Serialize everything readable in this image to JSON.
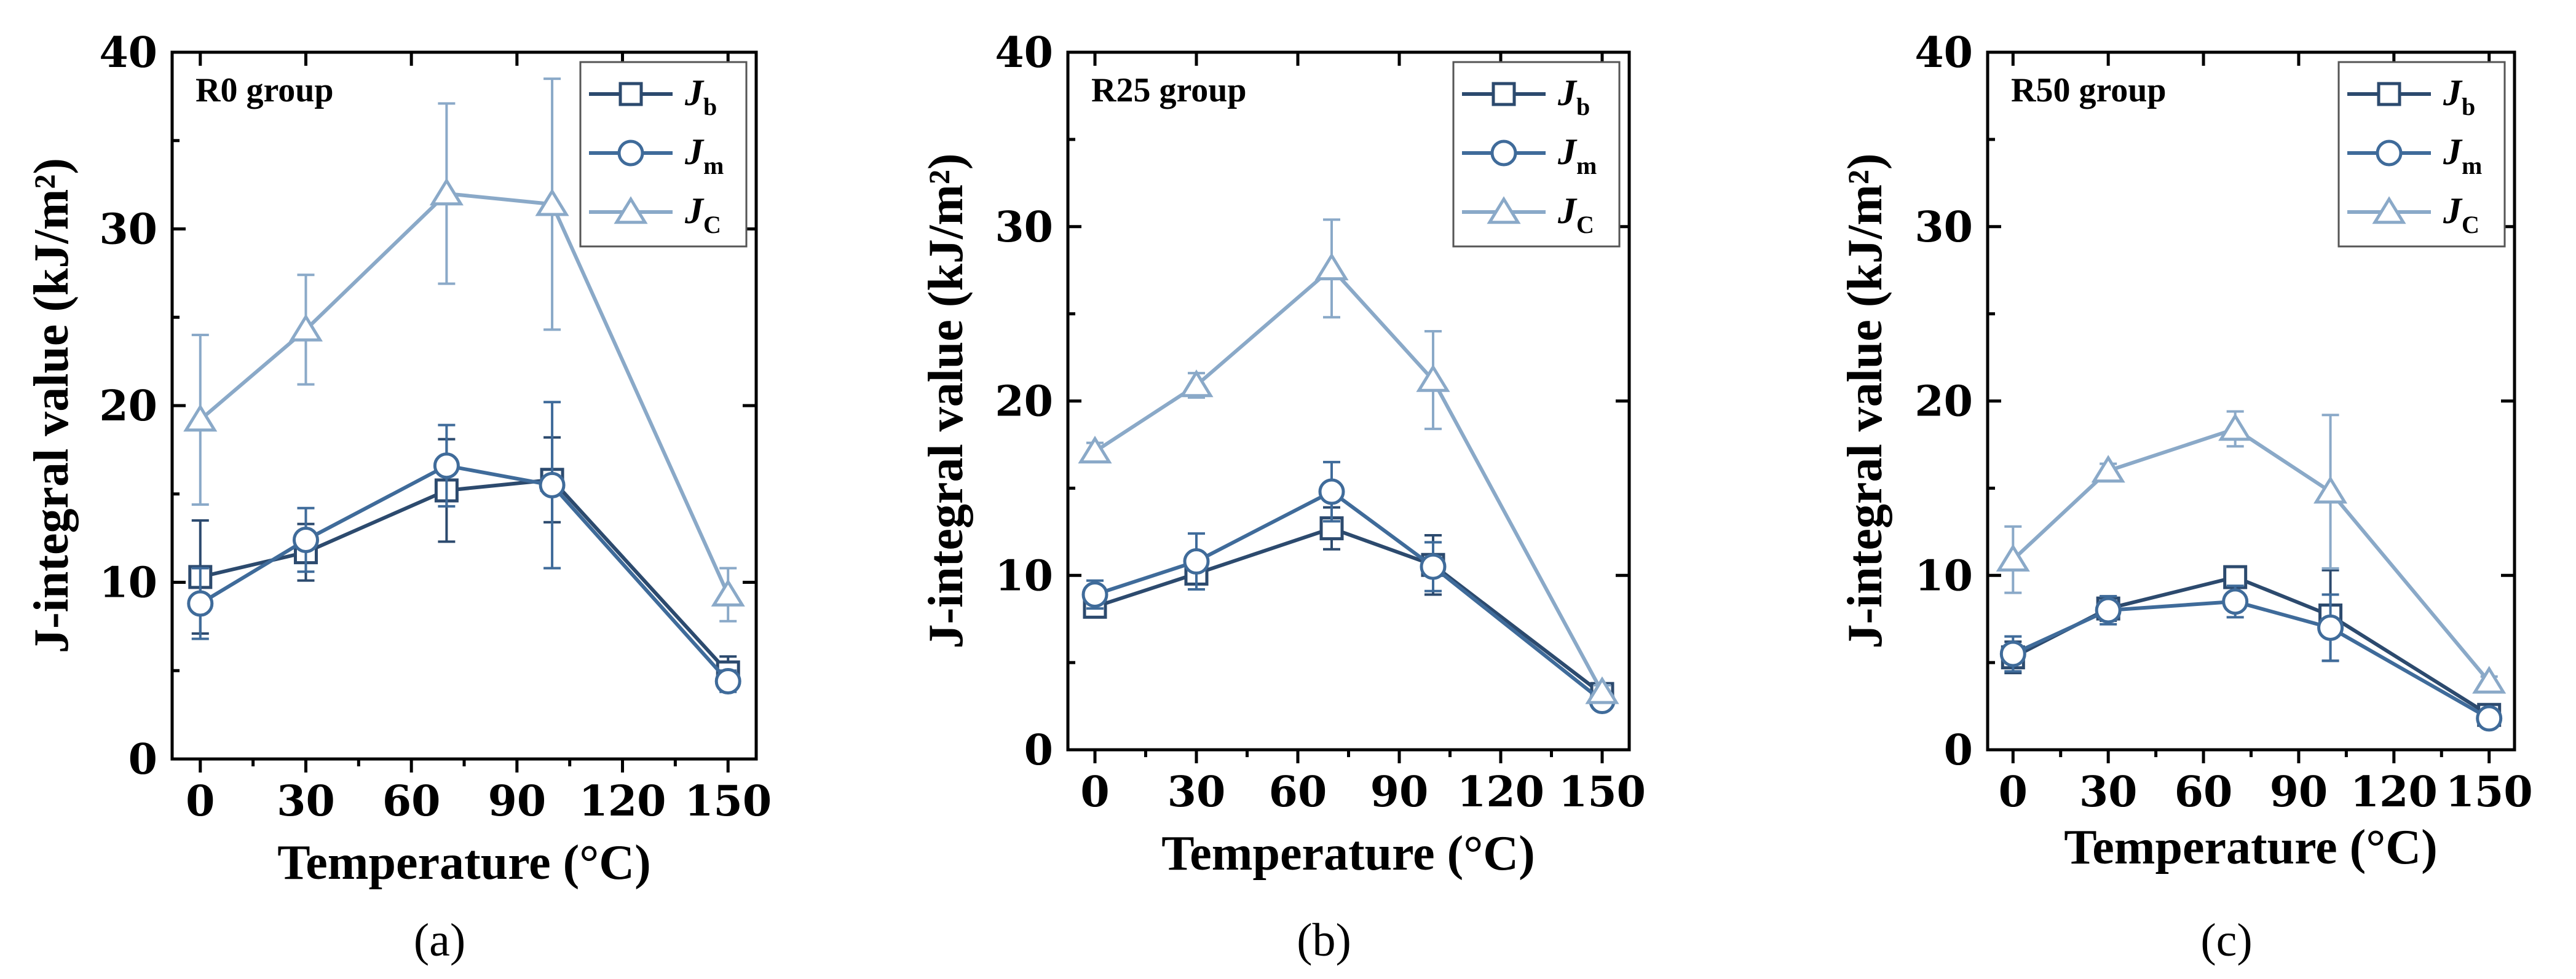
{
  "colors": {
    "Jb": "#2c4a6e",
    "Jm": "#3f6b9a",
    "Jc": "#8aa9c8",
    "axis": "#000000",
    "background": "#ffffff"
  },
  "chart_data": [
    {
      "type": "line",
      "panel_caption": "(a)",
      "group_label": "R0 group",
      "xlabel": "Temperature (°C)",
      "ylabel": "J-integral value (kJ/m²)",
      "x": [
        0,
        30,
        70,
        100,
        150
      ],
      "xticks": [
        0,
        30,
        60,
        90,
        120,
        150
      ],
      "xlim": [
        -8,
        158
      ],
      "ylim": [
        0,
        40
      ],
      "yticks": [
        0,
        10,
        20,
        30,
        40
      ],
      "legend_position": "top-right",
      "series": [
        {
          "key": "Jb",
          "name": "J",
          "sub": "b",
          "marker": "square",
          "values": [
            10.3,
            11.7,
            15.2,
            15.8,
            4.9
          ],
          "errors": [
            3.2,
            1.6,
            2.9,
            2.4,
            0.9
          ]
        },
        {
          "key": "Jm",
          "name": "J",
          "sub": "m",
          "marker": "circle",
          "values": [
            8.8,
            12.4,
            16.6,
            15.5,
            4.4
          ],
          "errors": [
            2.0,
            1.8,
            2.3,
            4.7,
            0.6
          ]
        },
        {
          "key": "Jc",
          "name": "J",
          "sub": "C",
          "marker": "triangle",
          "values": [
            19.2,
            24.3,
            32.0,
            31.4,
            9.3
          ],
          "errors": [
            4.8,
            3.1,
            5.1,
            7.1,
            1.5
          ]
        }
      ]
    },
    {
      "type": "line",
      "panel_caption": "(b)",
      "group_label": "R25 group",
      "xlabel": "Temperature (°C)",
      "ylabel": "J-integral value (kJ/m²)",
      "x": [
        0,
        30,
        70,
        100,
        150
      ],
      "xticks": [
        0,
        30,
        60,
        90,
        120,
        150
      ],
      "xlim": [
        -8,
        158
      ],
      "ylim": [
        0,
        40
      ],
      "yticks": [
        0,
        10,
        20,
        30,
        40
      ],
      "legend_position": "top-right",
      "series": [
        {
          "key": "Jb",
          "name": "J",
          "sub": "b",
          "marker": "square",
          "values": [
            8.2,
            10.1,
            12.7,
            10.6,
            3.2
          ],
          "errors": [
            0.6,
            0.9,
            1.2,
            1.7,
            0.4
          ]
        },
        {
          "key": "Jm",
          "name": "J",
          "sub": "m",
          "marker": "circle",
          "values": [
            8.9,
            10.8,
            14.8,
            10.5,
            2.8
          ],
          "errors": [
            0.8,
            1.6,
            1.7,
            1.4,
            0.3
          ]
        },
        {
          "key": "Jc",
          "name": "J",
          "sub": "C",
          "marker": "triangle",
          "values": [
            17.1,
            20.9,
            27.6,
            21.2,
            3.3
          ],
          "errors": [
            0.5,
            0.7,
            2.8,
            2.8,
            0.4
          ]
        }
      ]
    },
    {
      "type": "line",
      "panel_caption": "(c)",
      "group_label": "R50 group",
      "xlabel": "Temperature (°C)",
      "ylabel": "J-integral value (kJ/m²)",
      "x": [
        0,
        30,
        70,
        100,
        150
      ],
      "xticks": [
        0,
        30,
        60,
        90,
        120,
        150
      ],
      "xlim": [
        -8,
        158
      ],
      "ylim": [
        0,
        40
      ],
      "yticks": [
        0,
        10,
        20,
        30,
        40
      ],
      "legend_position": "top-right",
      "series": [
        {
          "key": "Jb",
          "name": "J",
          "sub": "b",
          "marker": "square",
          "values": [
            5.3,
            8.1,
            9.9,
            7.7,
            2.0
          ],
          "errors": [
            0.9,
            0.7,
            0.4,
            2.6,
            0.3
          ]
        },
        {
          "key": "Jm",
          "name": "J",
          "sub": "m",
          "marker": "circle",
          "values": [
            5.5,
            8.0,
            8.5,
            7.0,
            1.8
          ],
          "errors": [
            1.0,
            0.8,
            0.9,
            1.9,
            0.3
          ]
        },
        {
          "key": "Jc",
          "name": "J",
          "sub": "C",
          "marker": "triangle",
          "values": [
            10.9,
            16.0,
            18.4,
            14.8,
            3.9
          ],
          "errors": [
            1.9,
            0.4,
            1.0,
            4.4,
            0.3
          ]
        }
      ]
    }
  ]
}
